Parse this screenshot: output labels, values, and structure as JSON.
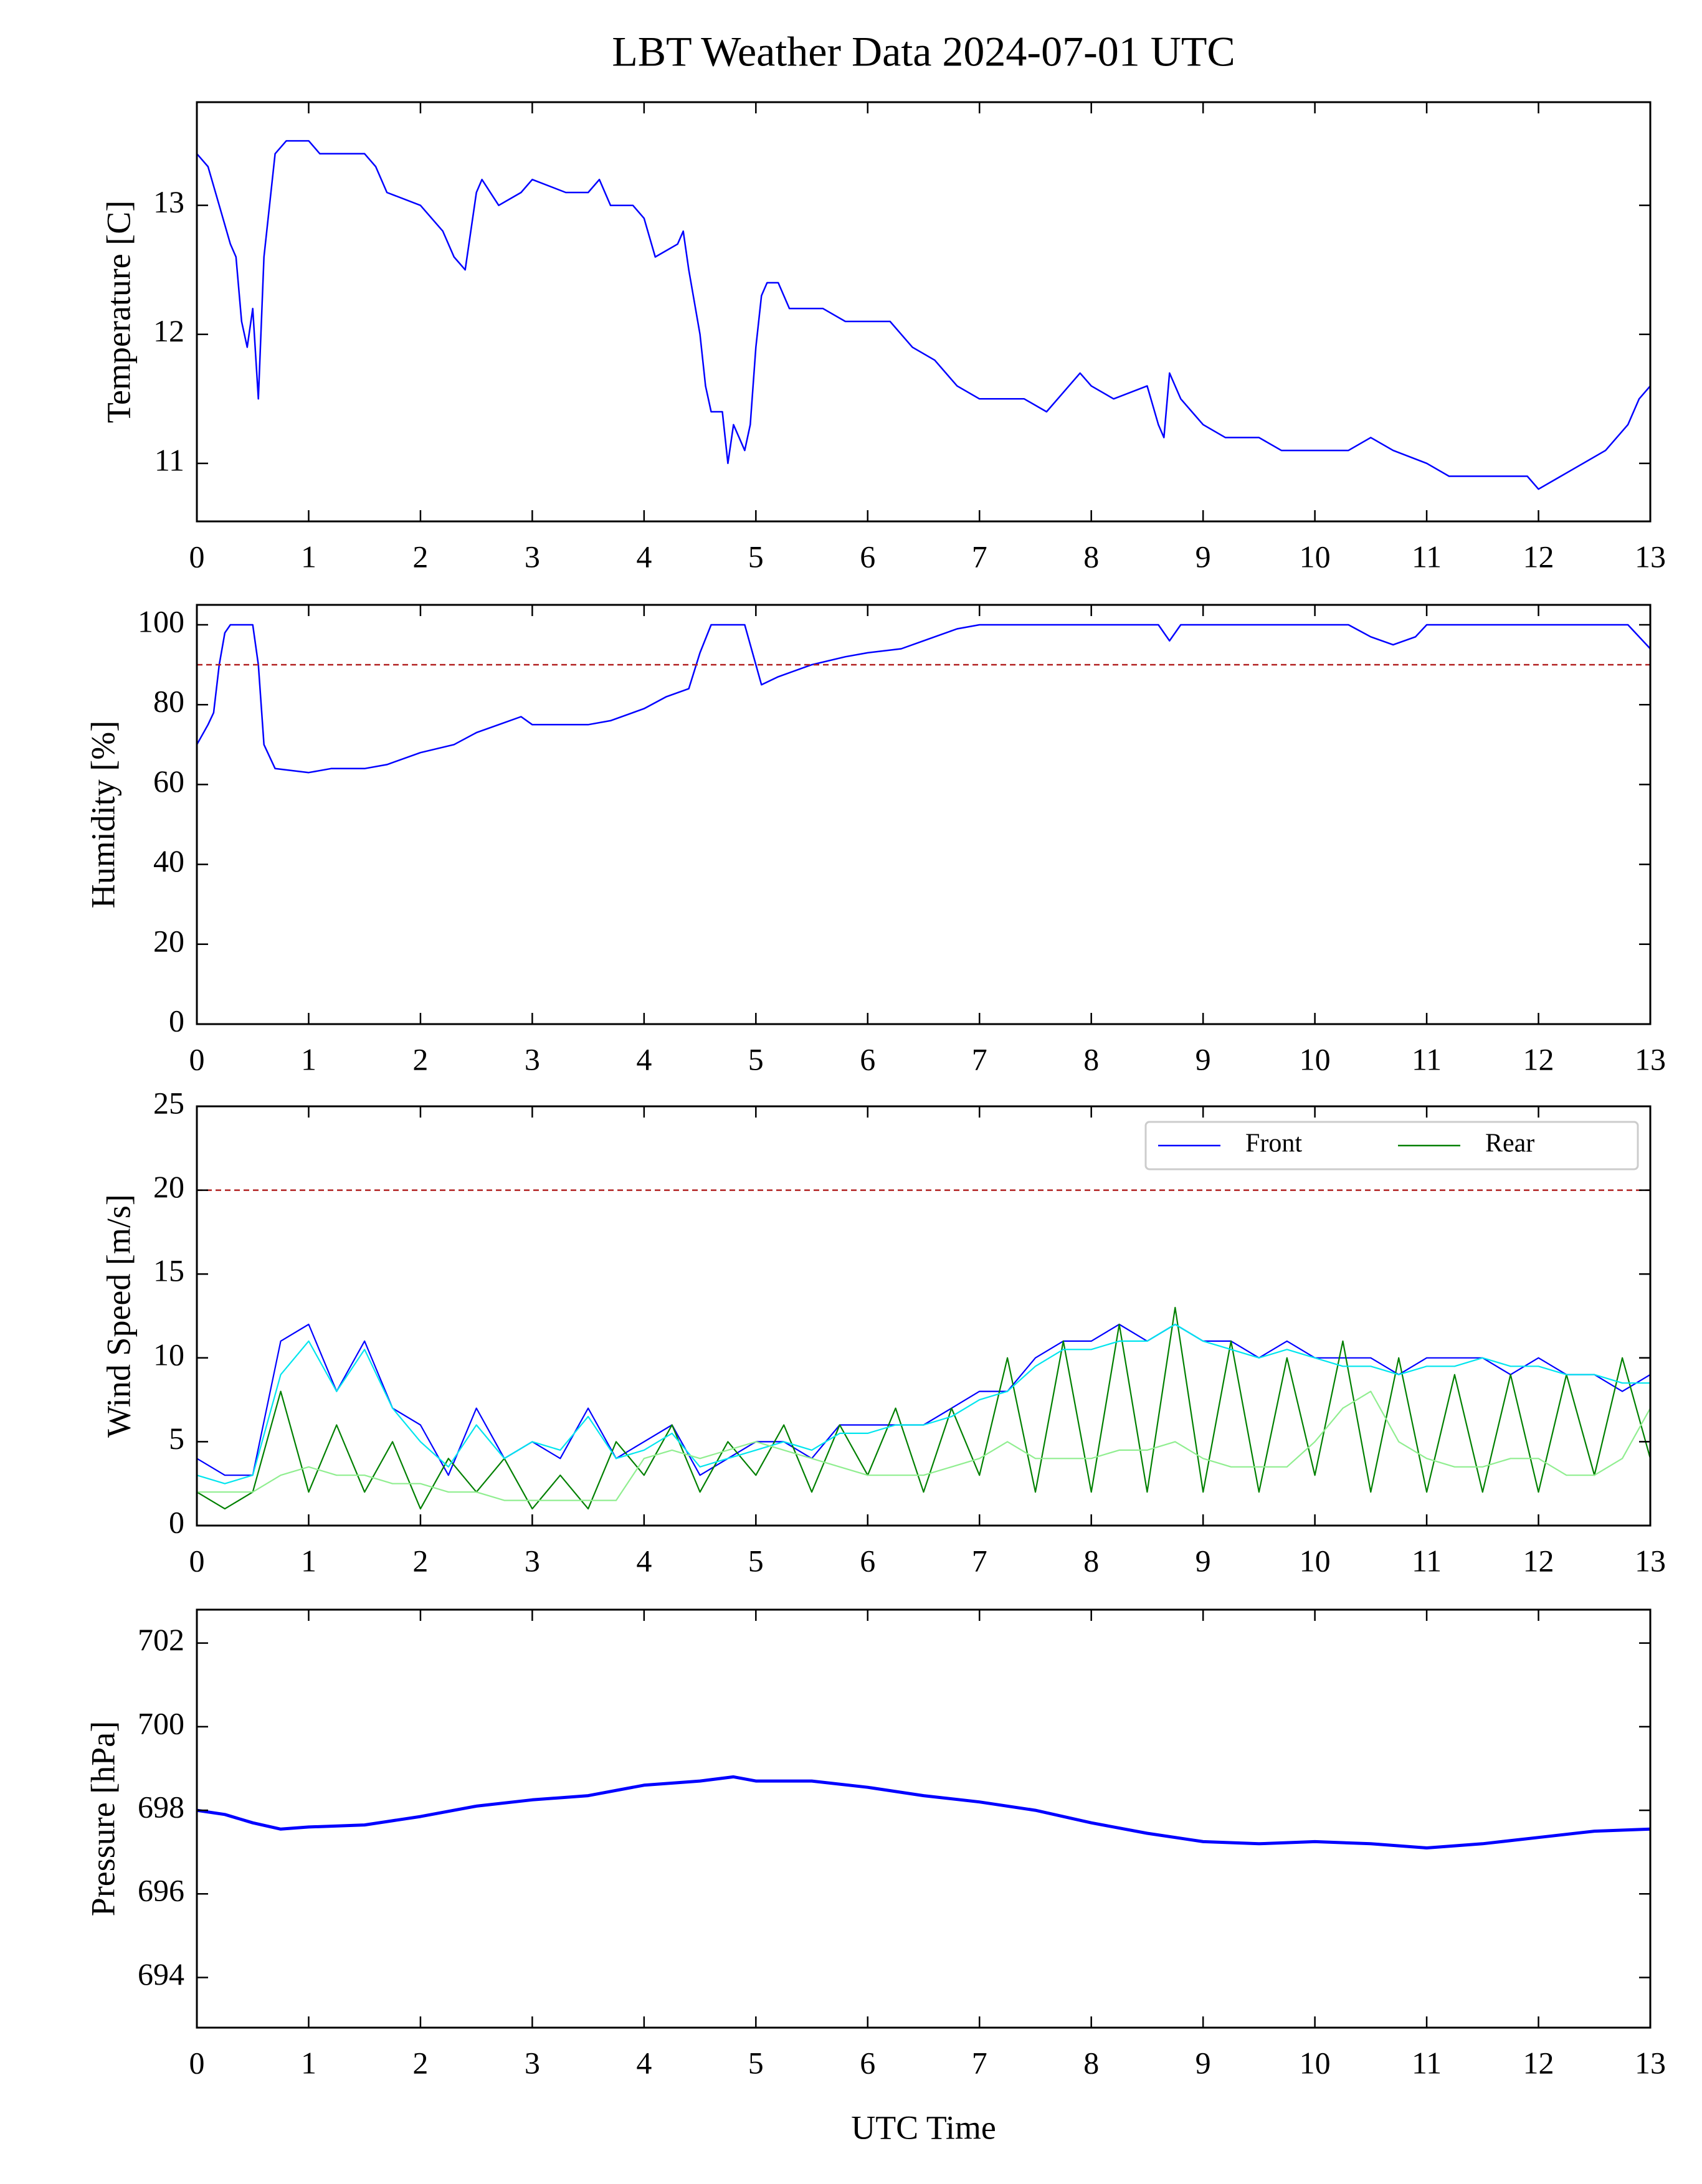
{
  "chart_data": [
    {
      "type": "line",
      "title": "LBT Weather Data 2024-07-01 UTC",
      "ylabel": "Temperature [C]",
      "color": "#0000ff",
      "x": [
        0,
        0.1,
        0.2,
        0.3,
        0.35,
        0.4,
        0.45,
        0.5,
        0.55,
        0.6,
        0.7,
        0.8,
        1.0,
        1.1,
        1.3,
        1.5,
        1.6,
        1.7,
        2.0,
        2.2,
        2.3,
        2.4,
        2.5,
        2.55,
        2.7,
        2.9,
        3.0,
        3.3,
        3.5,
        3.6,
        3.7,
        3.9,
        4.0,
        4.1,
        4.3,
        4.35,
        4.4,
        4.5,
        4.55,
        4.6,
        4.7,
        4.75,
        4.8,
        4.85,
        4.9,
        4.95,
        5.0,
        5.05,
        5.1,
        5.2,
        5.3,
        5.6,
        5.8,
        6.0,
        6.2,
        6.3,
        6.4,
        6.6,
        6.8,
        7.0,
        7.2,
        7.4,
        7.6,
        7.8,
        7.9,
        8.0,
        8.2,
        8.5,
        8.6,
        8.65,
        8.7,
        8.8,
        8.9,
        9.0,
        9.2,
        9.5,
        9.7,
        10.0,
        10.3,
        10.5,
        10.7,
        11.0,
        11.2,
        11.5,
        11.9,
        12.0,
        12.2,
        12.4,
        12.6,
        12.8,
        12.9,
        13.0
      ],
      "values": [
        13.4,
        13.3,
        13.0,
        12.7,
        12.6,
        12.1,
        11.9,
        12.2,
        11.5,
        12.6,
        13.4,
        13.5,
        13.5,
        13.4,
        13.4,
        13.4,
        13.3,
        13.1,
        13.0,
        12.8,
        12.6,
        12.5,
        13.1,
        13.2,
        13.0,
        13.1,
        13.2,
        13.1,
        13.1,
        13.2,
        13.0,
        13.0,
        12.9,
        12.6,
        12.7,
        12.8,
        12.5,
        12.0,
        11.6,
        11.4,
        11.4,
        11.0,
        11.3,
        11.2,
        11.1,
        11.3,
        11.9,
        12.3,
        12.4,
        12.4,
        12.2,
        12.2,
        12.1,
        12.1,
        12.1,
        12.0,
        11.9,
        11.8,
        11.6,
        11.5,
        11.5,
        11.5,
        11.4,
        11.6,
        11.7,
        11.6,
        11.5,
        11.6,
        11.3,
        11.2,
        11.7,
        11.5,
        11.4,
        11.3,
        11.2,
        11.2,
        11.1,
        11.1,
        11.1,
        11.2,
        11.1,
        11.0,
        10.9,
        10.9,
        10.9,
        10.8,
        10.9,
        11.0,
        11.1,
        11.3,
        11.5,
        11.6
      ],
      "xlim": [
        0,
        13
      ],
      "xticks": [
        0,
        1,
        2,
        3,
        4,
        5,
        6,
        7,
        8,
        9,
        10,
        11,
        12,
        13
      ],
      "ylim": [
        10.55,
        13.8
      ],
      "yticks": [
        11,
        12,
        13
      ]
    },
    {
      "type": "line",
      "ylabel": "Humidity [%]",
      "color": "#0000ff",
      "x": [
        0,
        0.1,
        0.15,
        0.2,
        0.25,
        0.3,
        0.5,
        0.55,
        0.6,
        0.7,
        1.0,
        1.2,
        1.5,
        1.7,
        2.0,
        2.3,
        2.5,
        2.7,
        2.9,
        3.0,
        3.3,
        3.5,
        3.7,
        4.0,
        4.2,
        4.4,
        4.5,
        4.6,
        4.9,
        5.0,
        5.05,
        5.2,
        5.5,
        5.8,
        6.0,
        6.3,
        6.5,
        6.8,
        7.0,
        8.0,
        8.6,
        8.7,
        8.8,
        10.3,
        10.5,
        10.7,
        10.9,
        11.0,
        12.8,
        13.0
      ],
      "values": [
        70,
        75,
        78,
        90,
        98,
        100,
        100,
        90,
        70,
        64,
        63,
        64,
        64,
        65,
        68,
        70,
        73,
        75,
        77,
        75,
        75,
        75,
        76,
        79,
        82,
        84,
        93,
        100,
        100,
        90,
        85,
        87,
        90,
        92,
        93,
        94,
        96,
        99,
        100,
        100,
        100,
        96,
        100,
        100,
        97,
        95,
        97,
        100,
        100,
        94
      ],
      "threshold": {
        "value": 90,
        "color": "#b22222"
      },
      "xlim": [
        0,
        13
      ],
      "xticks": [
        0,
        1,
        2,
        3,
        4,
        5,
        6,
        7,
        8,
        9,
        10,
        11,
        12,
        13
      ],
      "ylim": [
        0,
        105
      ],
      "yticks": [
        0,
        20,
        40,
        60,
        80,
        100
      ]
    },
    {
      "type": "line",
      "ylabel": "Wind Speed [m/s]",
      "legend": "upper right",
      "x": [
        0,
        0.25,
        0.5,
        0.75,
        1,
        1.25,
        1.5,
        1.75,
        2,
        2.25,
        2.5,
        2.75,
        3,
        3.25,
        3.5,
        3.75,
        4,
        4.25,
        4.5,
        4.75,
        5,
        5.25,
        5.5,
        5.75,
        6,
        6.25,
        6.5,
        6.75,
        7,
        7.25,
        7.5,
        7.75,
        8,
        8.25,
        8.5,
        8.75,
        9,
        9.25,
        9.5,
        9.75,
        10,
        10.25,
        10.5,
        10.75,
        11,
        11.25,
        11.5,
        11.75,
        12,
        12.25,
        12.5,
        12.75,
        13
      ],
      "series": [
        {
          "name": "Front",
          "color": "#0000ff",
          "values": [
            4,
            3,
            3,
            11,
            12,
            8,
            11,
            7,
            6,
            3,
            7,
            4,
            5,
            4,
            7,
            4,
            5,
            6,
            3,
            4,
            5,
            5,
            4,
            6,
            6,
            6,
            6,
            7,
            8,
            8,
            10,
            11,
            11,
            12,
            11,
            12,
            11,
            11,
            10,
            11,
            10,
            10,
            10,
            9,
            10,
            10,
            10,
            9,
            10,
            9,
            9,
            8,
            9
          ]
        },
        {
          "name": "Rear",
          "color": "#008000",
          "values": [
            2,
            1,
            2,
            8,
            2,
            6,
            2,
            5,
            1,
            4,
            2,
            4,
            1,
            3,
            1,
            5,
            3,
            6,
            2,
            5,
            3,
            6,
            2,
            6,
            3,
            7,
            2,
            7,
            3,
            10,
            2,
            11,
            2,
            12,
            2,
            13,
            2,
            11,
            2,
            10,
            3,
            11,
            2,
            10,
            2,
            9,
            2,
            9,
            2,
            9,
            3,
            10,
            4
          ]
        },
        {
          "color": "#00e5ee",
          "values": [
            3,
            2.5,
            3,
            9,
            11,
            8,
            10.5,
            7,
            5,
            3.5,
            6,
            4,
            5,
            4.5,
            6.5,
            4,
            4.5,
            5.5,
            3.5,
            4,
            4.5,
            5,
            4.5,
            5.5,
            5.5,
            6,
            6,
            6.5,
            7.5,
            8,
            9.5,
            10.5,
            10.5,
            11,
            11,
            12,
            11,
            10.5,
            10,
            10.5,
            10,
            9.5,
            9.5,
            9,
            9.5,
            9.5,
            10,
            9.5,
            9.5,
            9,
            9,
            8.5,
            8.5
          ]
        },
        {
          "color": "#90ee90",
          "values": [
            2,
            2,
            2,
            3,
            3.5,
            3,
            3,
            2.5,
            2.5,
            2,
            2,
            1.5,
            1.5,
            1.5,
            1.5,
            1.5,
            4,
            4.5,
            4,
            4.5,
            5,
            4.5,
            4,
            3.5,
            3,
            3,
            3,
            3.5,
            4,
            5,
            4,
            4,
            4,
            4.5,
            4.5,
            5,
            4,
            3.5,
            3.5,
            3.5,
            5,
            7,
            8,
            5,
            4,
            3.5,
            3.5,
            4,
            4,
            3,
            3,
            4,
            7
          ]
        }
      ],
      "threshold": {
        "value": 20,
        "color": "#b22222"
      },
      "xlim": [
        0,
        13
      ],
      "xticks": [
        0,
        1,
        2,
        3,
        4,
        5,
        6,
        7,
        8,
        9,
        10,
        11,
        12,
        13
      ],
      "ylim": [
        0,
        25
      ],
      "yticks": [
        0,
        5,
        10,
        15,
        20,
        25
      ]
    },
    {
      "type": "line",
      "ylabel": "Pressure [hPa]",
      "xlabel": "UTC Time",
      "color": "#0000ff",
      "x": [
        0,
        0.25,
        0.5,
        0.75,
        1,
        1.5,
        2,
        2.5,
        3,
        3.5,
        4,
        4.5,
        4.8,
        5,
        5.5,
        6,
        6.5,
        7,
        7.5,
        8,
        8.5,
        9,
        9.5,
        10,
        10.5,
        11,
        11.5,
        12,
        12.5,
        13
      ],
      "values": [
        698.0,
        697.9,
        697.7,
        697.55,
        697.6,
        697.65,
        697.85,
        698.1,
        698.25,
        698.35,
        698.6,
        698.7,
        698.8,
        698.7,
        698.7,
        698.55,
        698.35,
        698.2,
        698.0,
        697.7,
        697.45,
        697.25,
        697.2,
        697.25,
        697.2,
        697.1,
        697.2,
        697.35,
        697.5,
        697.55
      ],
      "xlim": [
        0,
        13
      ],
      "xticks": [
        0,
        1,
        2,
        3,
        4,
        5,
        6,
        7,
        8,
        9,
        10,
        11,
        12,
        13
      ],
      "ylim": [
        692.8,
        702.8
      ],
      "yticks": [
        694,
        696,
        698,
        700,
        702
      ]
    }
  ]
}
